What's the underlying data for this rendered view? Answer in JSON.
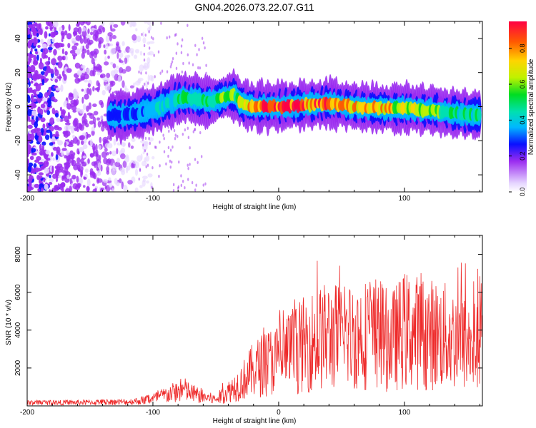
{
  "title": "GN04.2026.073.22.07.G11",
  "colorbar_label": "Normalized spectral amplitude",
  "colorbar_ticks": [
    "0.0",
    "0.2",
    "0.4",
    "0.6",
    "0.8"
  ],
  "chart_data": [
    {
      "type": "heatmap",
      "title": "GN04.2026.073.22.07.G11",
      "xlabel": "Height of straight line (km)",
      "ylabel": "Frequency (Hz)",
      "xlim": [
        -200,
        162
      ],
      "ylim": [
        -50,
        50
      ],
      "xticks": [
        -200,
        -100,
        0,
        100
      ],
      "yticks": [
        -40,
        -20,
        0,
        20,
        40
      ],
      "xtick_labels": [
        "-200",
        "-100",
        "0",
        "100"
      ],
      "ytick_labels": [
        "-40",
        "-20",
        "0",
        "20",
        "40"
      ],
      "colorbar": {
        "label": "Normalized spectral amplitude",
        "range": [
          0,
          0.95
        ],
        "ticks": [
          0.0,
          0.2,
          0.4,
          0.6,
          0.8
        ]
      },
      "noise_region_km": [
        -200,
        -110
      ],
      "ridge": {
        "height_km": [
          -135,
          -120,
          -100,
          -85,
          -75,
          -65,
          -55,
          -45,
          -35,
          -30,
          -20,
          0,
          20,
          40,
          60,
          80,
          100,
          120,
          140,
          160
        ],
        "frequency_hz": [
          -5,
          -5,
          -2,
          3,
          5,
          4,
          3,
          5,
          7,
          2,
          0,
          0,
          1,
          2,
          0,
          -1,
          -1,
          -2,
          -4,
          -5
        ],
        "amplitude": [
          0.25,
          0.3,
          0.35,
          0.45,
          0.5,
          0.5,
          0.5,
          0.55,
          0.55,
          0.75,
          0.85,
          0.9,
          0.9,
          0.85,
          0.8,
          0.75,
          0.7,
          0.6,
          0.5,
          0.45
        ]
      }
    },
    {
      "type": "line",
      "xlabel": "Height of straight line (km)",
      "ylabel": "SNR (10 * v/v)",
      "xlim": [
        -200,
        162
      ],
      "ylim": [
        0,
        9000
      ],
      "xticks": [
        -200,
        -100,
        0,
        100
      ],
      "yticks": [
        2000,
        4000,
        6000,
        8000
      ],
      "xtick_labels": [
        "-200",
        "-100",
        "0",
        "100"
      ],
      "ytick_labels": [
        "2000",
        "4000",
        "6000",
        "8000"
      ],
      "color": "#ee2a2a",
      "series": [
        {
          "name": "SNR",
          "x": [
            -200,
            -180,
            -160,
            -140,
            -120,
            -110,
            -100,
            -90,
            -80,
            -75,
            -70,
            -60,
            -50,
            -40,
            -30,
            -20,
            -10,
            0,
            10,
            20,
            30,
            40,
            50,
            60,
            70,
            80,
            90,
            100,
            110,
            120,
            130,
            140,
            150,
            160
          ],
          "y_mean": [
            180,
            180,
            190,
            200,
            220,
            280,
            400,
            600,
            800,
            900,
            700,
            500,
            350,
            800,
            1300,
            2000,
            2400,
            2600,
            3000,
            3400,
            3700,
            3900,
            3800,
            3900,
            4000,
            3800,
            3600,
            4200,
            4100,
            4000,
            3900,
            3700,
            3400,
            3200
          ],
          "y_peak": [
            300,
            300,
            300,
            350,
            350,
            450,
            700,
            1100,
            1500,
            1600,
            1200,
            900,
            800,
            1900,
            2800,
            5400,
            4200,
            5200,
            5600,
            5800,
            7800,
            9000,
            7200,
            7400,
            6800,
            7300,
            7000,
            7600,
            7200,
            8600,
            7600,
            8000,
            8400,
            7300
          ]
        }
      ]
    }
  ]
}
